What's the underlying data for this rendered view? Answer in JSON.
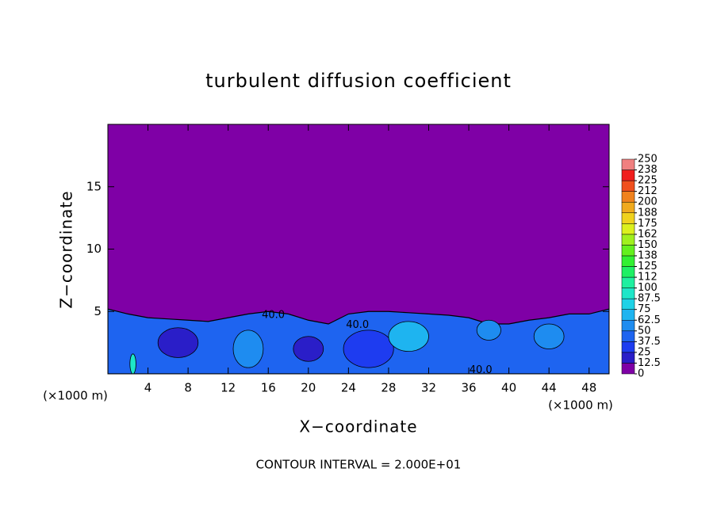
{
  "chart_data": {
    "type": "contour",
    "title": "turbulent diffusion coefficient",
    "xlabel": "X−coordinate",
    "ylabel": "Z−coordinate",
    "x_unit_label": "(×1000 m)",
    "y_unit_label": "(×1000 m)",
    "footer": "CONTOUR INTERVAL = 2.000E+01",
    "xlim": [
      0,
      50
    ],
    "ylim": [
      0,
      20
    ],
    "xticks": [
      4,
      8,
      12,
      16,
      20,
      24,
      28,
      32,
      36,
      40,
      44,
      48
    ],
    "yticks": [
      5,
      10,
      15
    ],
    "background_value": 0,
    "levels": [
      0,
      12.5,
      25,
      37.5,
      50,
      62.5,
      75,
      87.5,
      100,
      {
        "value": 112.5,
        "label": "112"
      },
      125,
      {
        "value": 137.5,
        "label": "138"
      },
      150,
      {
        "value": 162.5,
        "label": "162"
      },
      175,
      {
        "value": 187.5,
        "label": "188"
      },
      200,
      {
        "value": 212.5,
        "label": "212"
      },
      225,
      {
        "value": 237.5,
        "label": "238"
      },
      250
    ],
    "colors": [
      "#7f00a6",
      "#2a1ec8",
      "#1e3cf0",
      "#1e64f0",
      "#1e8cf0",
      "#1eb4f0",
      "#1ed2e6",
      "#1ee6c8",
      "#1ef0a0",
      "#1ef064",
      "#32f032",
      "#64f01e",
      "#a0f01e",
      "#dcf01e",
      "#f0d21e",
      "#f0aa1e",
      "#f0821e",
      "#f0501e",
      "#f01e1e",
      "#f08080"
    ],
    "layer": {
      "value": 40,
      "x": [
        0,
        2,
        4,
        6,
        8,
        10,
        12,
        14,
        16,
        18,
        20,
        22,
        24,
        26,
        28,
        30,
        32,
        34,
        36,
        38,
        40,
        42,
        44,
        46,
        48,
        50
      ],
      "z": [
        5.2,
        4.8,
        4.5,
        4.4,
        4.3,
        4.2,
        4.5,
        4.8,
        5.0,
        4.8,
        4.3,
        4.0,
        4.8,
        5.0,
        5.0,
        4.9,
        4.8,
        4.7,
        4.5,
        4.0,
        4.0,
        4.3,
        4.5,
        4.8,
        4.8,
        5.2
      ]
    },
    "patches": [
      {
        "x": 7,
        "z": 2.5,
        "rx": 2,
        "rz": 1.2,
        "value": 20
      },
      {
        "x": 14,
        "z": 2,
        "rx": 1.5,
        "rz": 1.5,
        "value": 60
      },
      {
        "x": 20,
        "z": 2,
        "rx": 1.5,
        "rz": 1,
        "value": 20
      },
      {
        "x": 26,
        "z": 2,
        "rx": 2.5,
        "rz": 1.5,
        "value": 25
      },
      {
        "x": 30,
        "z": 3,
        "rx": 2,
        "rz": 1.2,
        "value": 70
      },
      {
        "x": 38,
        "z": 3.5,
        "rx": 1.2,
        "rz": 0.8,
        "value": 55
      },
      {
        "x": 44,
        "z": 3,
        "rx": 1.5,
        "rz": 1,
        "value": 60
      },
      {
        "x": 2.5,
        "z": 0.8,
        "rx": 0.3,
        "rz": 0.8,
        "value": 90
      }
    ],
    "contour_labels": [
      {
        "label": "40.0",
        "x": 16.5,
        "z": 4.7
      },
      {
        "label": "40.0",
        "x": 24.9,
        "z": 3.9
      },
      {
        "label": "40.0",
        "x": 37.2,
        "z": 0.3
      }
    ]
  }
}
